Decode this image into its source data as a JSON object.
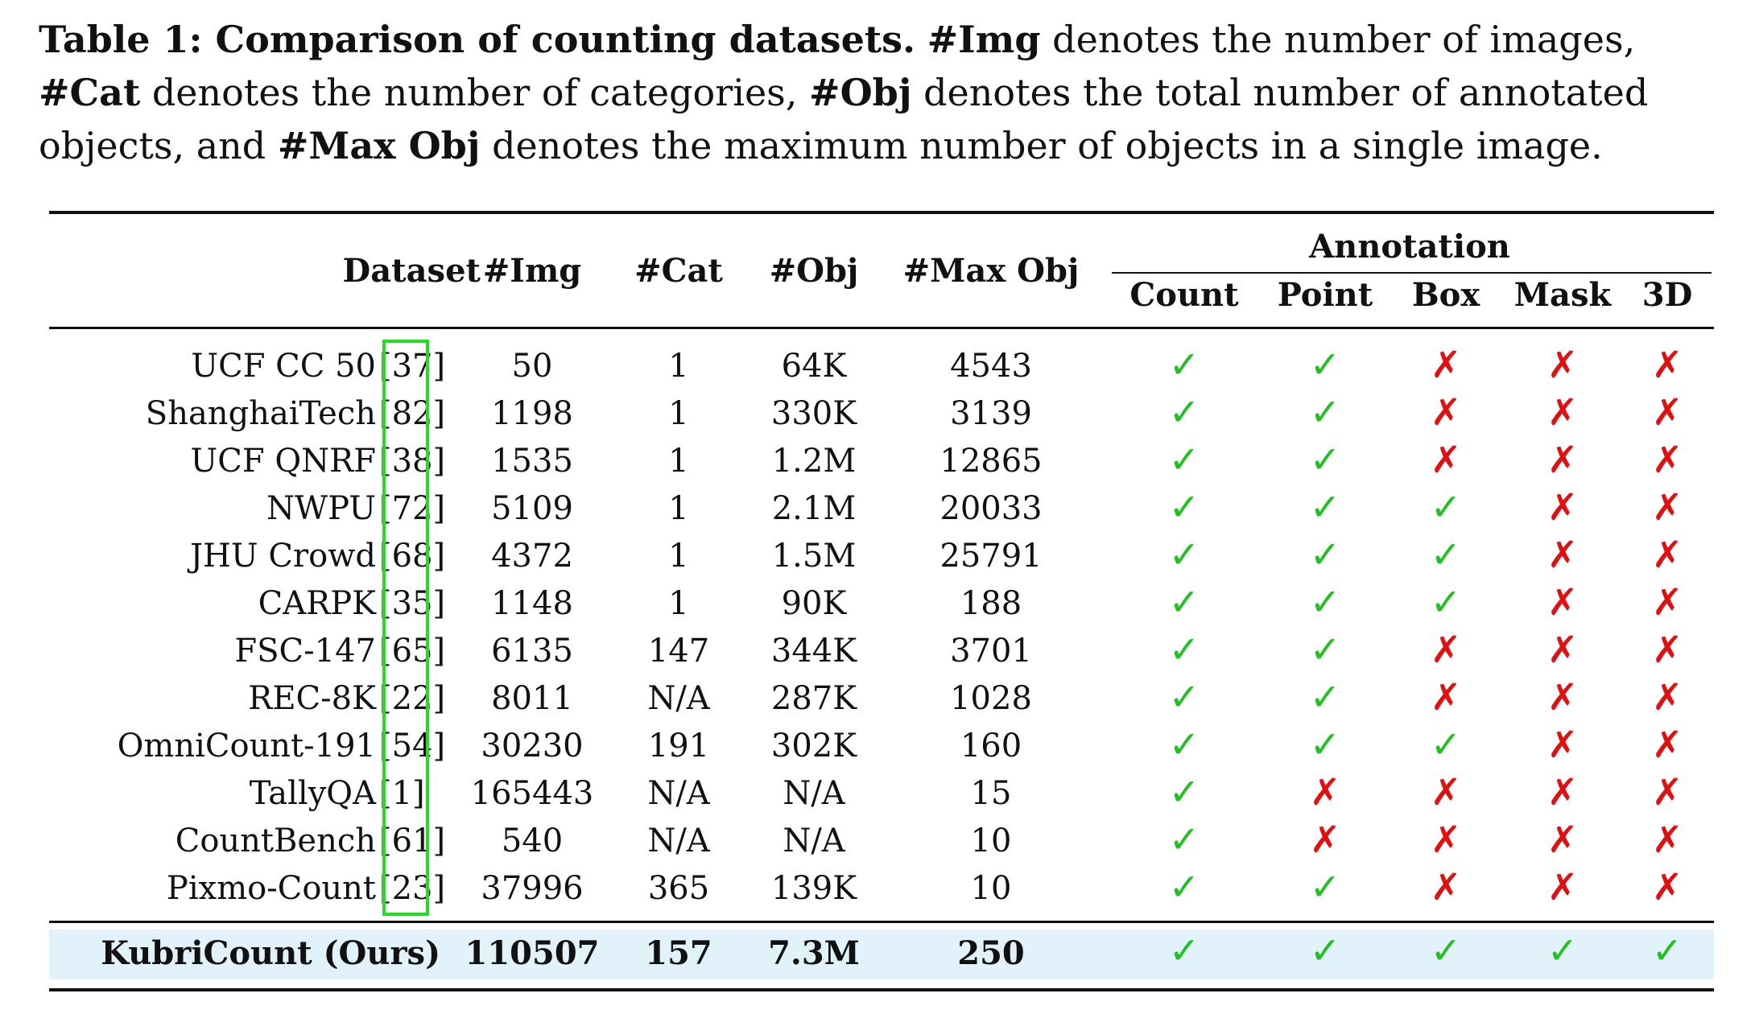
{
  "caption": {
    "lead": "Table 1: Comparison of counting datasets.",
    "img_term": "#Img",
    "img_desc": "denotes the number of images,",
    "cat_term": "#Cat",
    "cat_desc": "denotes the number of categories,",
    "obj_term": "#Obj",
    "obj_desc": "denotes the total number of annotated objects, and",
    "max_term": "#Max Obj",
    "max_desc": "denotes the maximum number of objects in a single image."
  },
  "headers": {
    "dataset": "Dataset",
    "img": "#Img",
    "cat": "#Cat",
    "obj": "#Obj",
    "max_obj": "#Max Obj",
    "annotation": "Annotation",
    "count": "Count",
    "point": "Point",
    "box": "Box",
    "mask": "Mask",
    "three_d": "3D"
  },
  "rows": [
    {
      "dataset": "UCF CC 50",
      "ref": "[37]",
      "img": "50",
      "cat": "1",
      "obj": "64K",
      "max_obj": "4543",
      "count": true,
      "point": true,
      "box": false,
      "mask": false,
      "three_d": false
    },
    {
      "dataset": "ShanghaiTech",
      "ref": "[82]",
      "img": "1198",
      "cat": "1",
      "obj": "330K",
      "max_obj": "3139",
      "count": true,
      "point": true,
      "box": false,
      "mask": false,
      "three_d": false
    },
    {
      "dataset": "UCF QNRF",
      "ref": "[38]",
      "img": "1535",
      "cat": "1",
      "obj": "1.2M",
      "max_obj": "12865",
      "count": true,
      "point": true,
      "box": false,
      "mask": false,
      "three_d": false
    },
    {
      "dataset": "NWPU",
      "ref": "[72]",
      "img": "5109",
      "cat": "1",
      "obj": "2.1M",
      "max_obj": "20033",
      "count": true,
      "point": true,
      "box": true,
      "mask": false,
      "three_d": false
    },
    {
      "dataset": "JHU Crowd",
      "ref": "[68]",
      "img": "4372",
      "cat": "1",
      "obj": "1.5M",
      "max_obj": "25791",
      "count": true,
      "point": true,
      "box": true,
      "mask": false,
      "three_d": false
    },
    {
      "dataset": "CARPK",
      "ref": "[35]",
      "img": "1148",
      "cat": "1",
      "obj": "90K",
      "max_obj": "188",
      "count": true,
      "point": true,
      "box": true,
      "mask": false,
      "three_d": false
    },
    {
      "dataset": "FSC-147",
      "ref": "[65]",
      "img": "6135",
      "cat": "147",
      "obj": "344K",
      "max_obj": "3701",
      "count": true,
      "point": true,
      "box": false,
      "mask": false,
      "three_d": false
    },
    {
      "dataset": "REC-8K",
      "ref": "[22]",
      "img": "8011",
      "cat": "N/A",
      "obj": "287K",
      "max_obj": "1028",
      "count": true,
      "point": true,
      "box": false,
      "mask": false,
      "three_d": false
    },
    {
      "dataset": "OmniCount-191",
      "ref": "[54]",
      "img": "30230",
      "cat": "191",
      "obj": "302K",
      "max_obj": "160",
      "count": true,
      "point": true,
      "box": true,
      "mask": false,
      "three_d": false
    },
    {
      "dataset": "TallyQA",
      "ref": "[1]",
      "img": "165443",
      "cat": "N/A",
      "obj": "N/A",
      "max_obj": "15",
      "count": true,
      "point": false,
      "box": false,
      "mask": false,
      "three_d": false
    },
    {
      "dataset": "CountBench",
      "ref": "[61]",
      "img": "540",
      "cat": "N/A",
      "obj": "N/A",
      "max_obj": "10",
      "count": true,
      "point": false,
      "box": false,
      "mask": false,
      "three_d": false
    },
    {
      "dataset": "Pixmo-Count",
      "ref": "[23]",
      "img": "37996",
      "cat": "365",
      "obj": "139K",
      "max_obj": "10",
      "count": true,
      "point": true,
      "box": false,
      "mask": false,
      "three_d": false
    }
  ],
  "ours": {
    "dataset": "KubriCount (Ours)",
    "img": "110507",
    "cat": "157",
    "obj": "7.3M",
    "max_obj": "250",
    "count": true,
    "point": true,
    "box": true,
    "mask": true,
    "three_d": true
  },
  "marks": {
    "yes": "✓",
    "no": "✗"
  },
  "colors": {
    "yes": "#22c022",
    "no": "#e01010",
    "highlight": "#e1f2fb",
    "ref_box": "#22dd22"
  }
}
